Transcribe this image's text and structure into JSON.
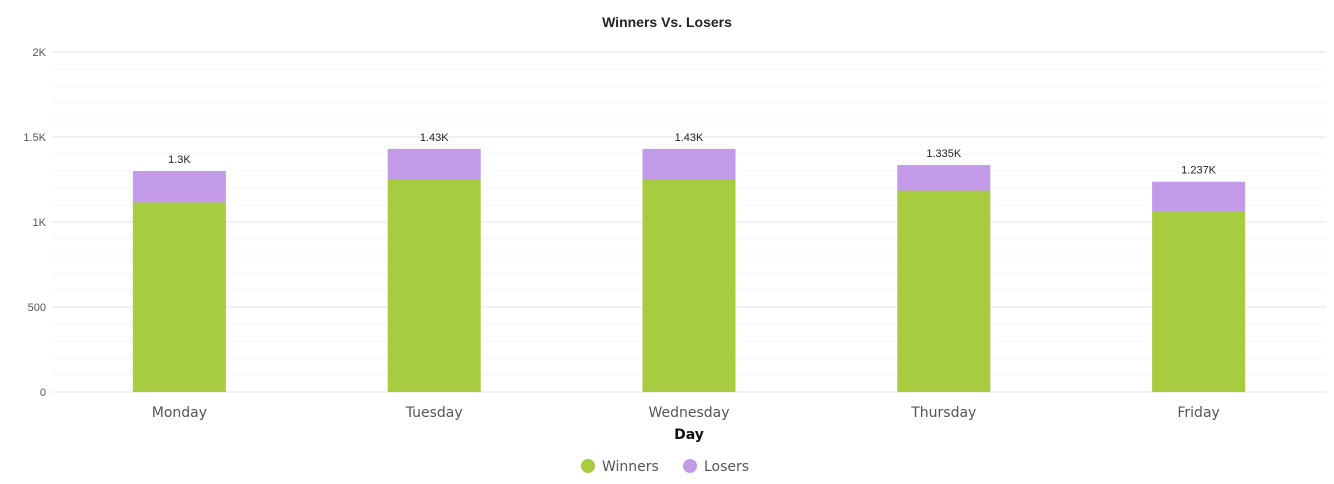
{
  "chart_data": {
    "type": "bar",
    "stacked": true,
    "title": "Winners Vs. Losers",
    "xlabel": "Day",
    "ylabel": "",
    "categories": [
      "Monday",
      "Tuesday",
      "Wednesday",
      "Thursday",
      "Friday"
    ],
    "series": [
      {
        "name": "Winners",
        "color": "#a8cc3f",
        "values": [
          1115,
          1250,
          1250,
          1185,
          1065
        ]
      },
      {
        "name": "Losers",
        "color": "#c39ae8",
        "values": [
          185,
          180,
          180,
          150,
          172
        ]
      }
    ],
    "totals": [
      "1.3K",
      "1.43K",
      "1.43K",
      "1.335K",
      "1.237K"
    ],
    "ylim": [
      0,
      2000
    ],
    "yticks": [
      {
        "value": 0,
        "label": "0"
      },
      {
        "value": 500,
        "label": "500"
      },
      {
        "value": 1000,
        "label": "1K"
      },
      {
        "value": 1500,
        "label": "1.5K"
      },
      {
        "value": 2000,
        "label": "2K"
      }
    ],
    "grid": true,
    "legend_position": "bottom-center"
  }
}
